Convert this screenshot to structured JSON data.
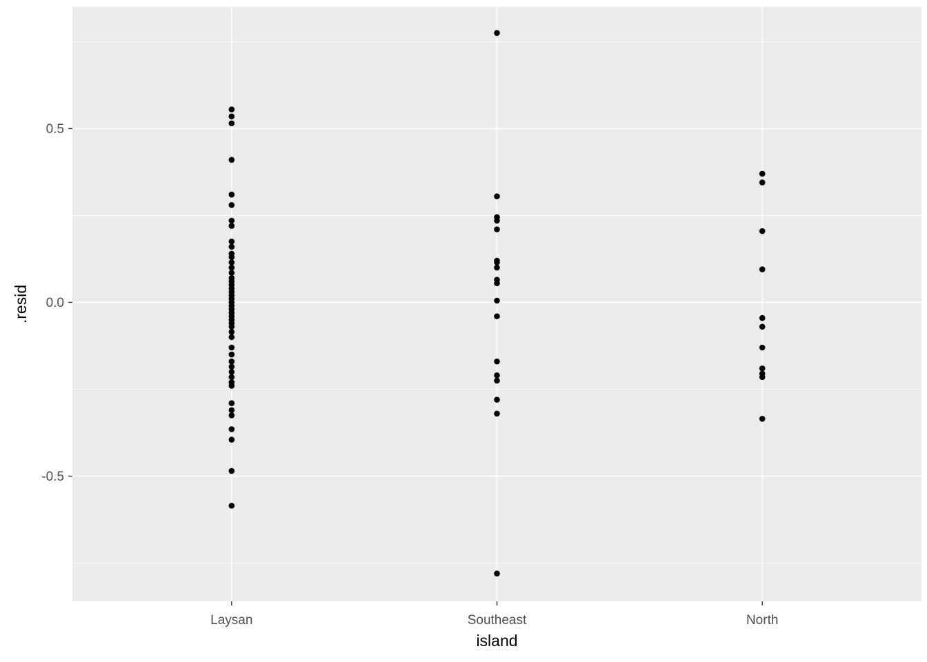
{
  "chart_data": {
    "type": "scatter",
    "title": "",
    "xlabel": "island",
    "ylabel": ".resid",
    "categories": [
      "Laysan",
      "Southeast",
      "North"
    ],
    "ylim": [
      -0.86,
      0.85
    ],
    "yticks": [
      {
        "value": 0.5,
        "label": "0.5"
      },
      {
        "value": 0.0,
        "label": "0.0"
      },
      {
        "value": -0.5,
        "label": "-0.5"
      }
    ],
    "minor_yticks": [
      0.75,
      0.25,
      -0.25,
      -0.75
    ],
    "grid": true,
    "legend": "none",
    "colors": {
      "page_bg": "#FFFFFF",
      "panel_bg": "#EBEBEB",
      "grid_major": "#FFFFFF",
      "grid_minor": "#FFFFFF",
      "point": "#000000",
      "tick_text": "#4D4D4D",
      "tick_mark": "#333333",
      "axis_title": "#000000"
    },
    "series": [
      {
        "name": "Laysan",
        "values": [
          0.555,
          0.535,
          0.515,
          0.41,
          0.31,
          0.28,
          0.235,
          0.22,
          0.175,
          0.16,
          0.14,
          0.13,
          0.115,
          0.1,
          0.085,
          0.07,
          0.06,
          0.05,
          0.04,
          0.03,
          0.02,
          0.01,
          0.0,
          -0.01,
          -0.02,
          -0.03,
          -0.04,
          -0.05,
          -0.06,
          -0.07,
          -0.085,
          -0.1,
          -0.13,
          -0.15,
          -0.17,
          -0.185,
          -0.2,
          -0.215,
          -0.23,
          -0.24,
          -0.29,
          -0.31,
          -0.325,
          -0.365,
          -0.395,
          -0.485,
          -0.585
        ]
      },
      {
        "name": "Southeast",
        "values": [
          0.775,
          0.305,
          0.245,
          0.235,
          0.21,
          0.12,
          0.115,
          0.1,
          0.065,
          0.055,
          0.005,
          -0.04,
          -0.17,
          -0.21,
          -0.225,
          -0.28,
          -0.32,
          -0.78
        ]
      },
      {
        "name": "North",
        "values": [
          0.37,
          0.345,
          0.205,
          0.095,
          -0.045,
          -0.07,
          -0.13,
          -0.19,
          -0.205,
          -0.215,
          -0.335
        ]
      }
    ]
  }
}
